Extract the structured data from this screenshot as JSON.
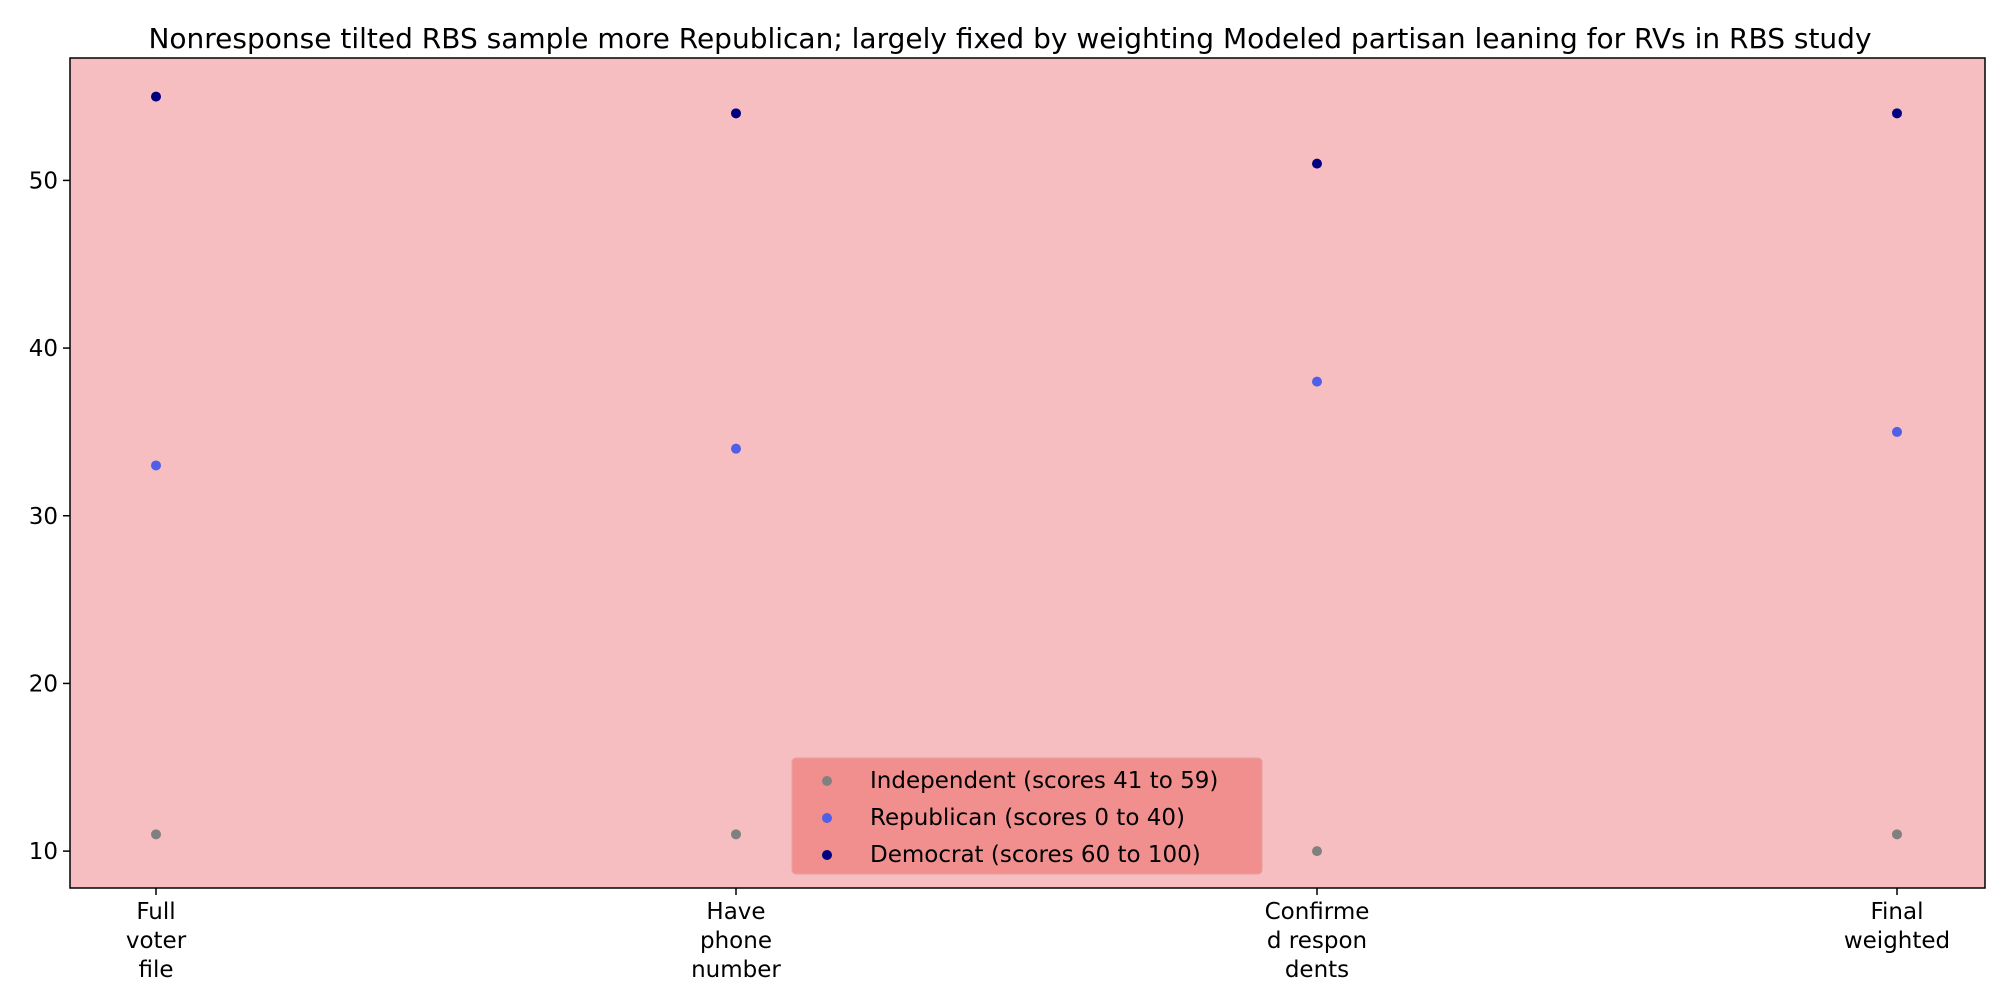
{
  "chart_data": {
    "type": "scatter",
    "title": "Nonresponse tilted RBS sample more Republican; largely fixed by weighting Modeled partisan leaning for RVs in RBS study",
    "xlabel": "",
    "ylabel": "",
    "categories": [
      [
        "Full",
        "voter",
        "file"
      ],
      [
        "Have",
        "phone",
        "number"
      ],
      [
        "Confirme",
        "d respon",
        "dents"
      ],
      [
        "Final",
        "weighted"
      ]
    ],
    "series": [
      {
        "name": "Independent (scores 41 to 59)",
        "color": "#808080",
        "values": [
          11,
          11,
          10,
          11
        ]
      },
      {
        "name": "Republican (scores 0 to 40)",
        "color": "#4f5fe8",
        "values": [
          33,
          34,
          38,
          35
        ]
      },
      {
        "name": "Democrat (scores 60 to 100)",
        "color": "#000080",
        "values": [
          55,
          54,
          51,
          54
        ]
      }
    ],
    "yticks": [
      10,
      20,
      30,
      40,
      50
    ],
    "ylim": [
      7.8,
      57.3
    ],
    "grid": false,
    "legend_position": "bottom-center",
    "background_color": "#f6bec1",
    "legend_background_color": "#f08c8c",
    "axis_color": "#000000"
  }
}
